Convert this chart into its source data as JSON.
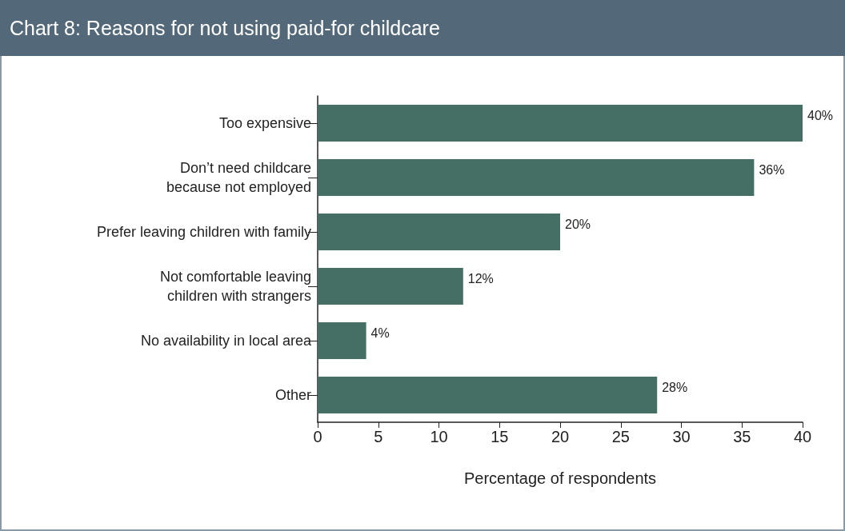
{
  "chart_data": {
    "type": "bar",
    "orientation": "horizontal",
    "title": "Chart 8: Reasons for not using paid-for childcare",
    "xlabel": "Percentage of respondents",
    "categories": [
      "Too expensive",
      "Don’t need childcare\nbecause not employed",
      "Prefer leaving children with family",
      "Not comfortable leaving\nchildren with strangers",
      "No availability in local area",
      "Other"
    ],
    "values": [
      40,
      36,
      20,
      12,
      4,
      28
    ],
    "color": "#456e65",
    "value_labels": [
      "40%",
      "36%",
      "20%",
      "12%",
      "4%",
      "28%"
    ],
    "xlim": [
      0,
      40
    ],
    "xticks": [
      0,
      5,
      10,
      15,
      20,
      25,
      30,
      35,
      40
    ],
    "grid": false
  }
}
